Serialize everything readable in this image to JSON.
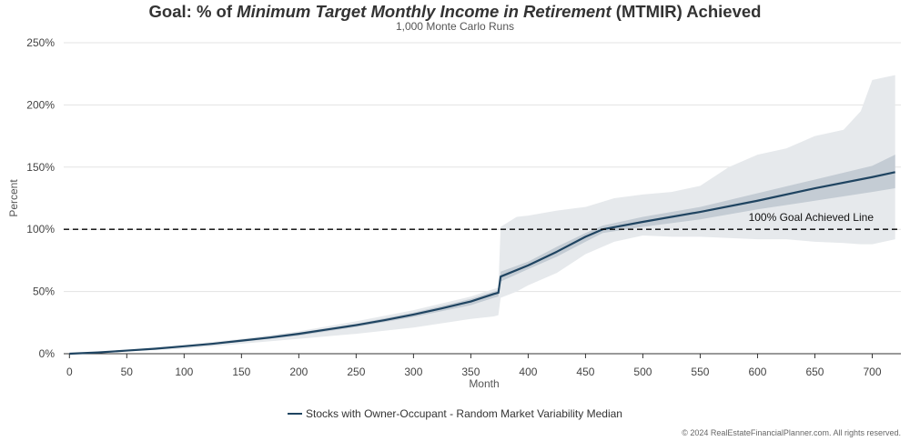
{
  "chart_data": {
    "type": "line",
    "title": {
      "prefix": "Goal: % of ",
      "italic": "Minimum Target Monthly Income in Retirement",
      "suffix": " (MTMIR) Achieved"
    },
    "subtitle": "1,000 Monte Carlo Runs",
    "xlabel": "Month",
    "ylabel": "Percent",
    "xlim": [
      -5,
      725
    ],
    "ylim": [
      0,
      250
    ],
    "x_ticks": [
      0,
      50,
      100,
      150,
      200,
      250,
      300,
      350,
      400,
      450,
      500,
      550,
      600,
      650,
      700
    ],
    "y_ticks": [
      {
        "value": 0,
        "label": "0%"
      },
      {
        "value": 50,
        "label": "50%"
      },
      {
        "value": 100,
        "label": "100%"
      },
      {
        "value": 150,
        "label": "150%"
      },
      {
        "value": 200,
        "label": "200%"
      },
      {
        "value": 250,
        "label": "250%"
      }
    ],
    "grid": "horizontal",
    "legend_position": "bottom",
    "series": [
      {
        "name": "Stocks with Owner-Occupant - Random Market Variability Median",
        "color": "#1f4461",
        "x": [
          0,
          25,
          50,
          75,
          100,
          125,
          150,
          175,
          200,
          225,
          250,
          275,
          300,
          325,
          350,
          370,
          374,
          376,
          400,
          425,
          450,
          465,
          500,
          550,
          600,
          650,
          700,
          720
        ],
        "values": [
          0,
          1,
          2.5,
          4,
          6,
          8,
          10.5,
          13,
          16,
          19.5,
          23,
          27,
          31.5,
          36.5,
          42,
          48,
          49,
          62,
          71,
          82,
          94,
          100,
          106,
          114,
          123,
          133,
          142,
          146
        ]
      }
    ],
    "bands": [
      {
        "color": "#e6e9ec",
        "x": [
          0,
          50,
          100,
          150,
          200,
          250,
          300,
          350,
          370,
          374,
          376,
          390,
          400,
          425,
          450,
          475,
          500,
          525,
          550,
          575,
          600,
          625,
          650,
          675,
          690,
          700,
          710,
          720
        ],
        "upper": [
          0,
          3,
          7,
          12,
          18,
          26,
          35,
          46,
          52,
          53,
          102,
          110,
          111,
          115,
          118,
          125,
          128,
          130,
          135,
          150,
          160,
          165,
          175,
          180,
          195,
          220,
          222,
          224
        ],
        "lower": [
          0,
          2,
          4,
          8,
          12,
          16,
          21,
          28,
          30,
          31,
          45,
          50,
          55,
          65,
          80,
          90,
          95,
          94,
          94,
          93,
          92,
          92,
          90,
          89,
          88,
          88,
          90,
          92
        ]
      },
      {
        "color": "#c4ccd4",
        "x": [
          0,
          50,
          100,
          150,
          200,
          250,
          300,
          350,
          370,
          374,
          376,
          400,
          425,
          450,
          465,
          500,
          550,
          600,
          650,
          700,
          720
        ],
        "upper": [
          0,
          2.8,
          6.5,
          11,
          17,
          24,
          33,
          44,
          50,
          51,
          66,
          74,
          86,
          97,
          103,
          110,
          118,
          129,
          140,
          151,
          160
        ],
        "lower": [
          0,
          2.2,
          5.5,
          9.5,
          14.5,
          21.5,
          29.5,
          39,
          45,
          46,
          58,
          68,
          78,
          90,
          97,
          102,
          108,
          116,
          123,
          130,
          133
        ]
      }
    ],
    "reference_line": {
      "value": 100,
      "label": "100% Goal Achieved Line",
      "style": "dashed",
      "color": "#000000"
    }
  },
  "footer": {
    "copyright": "© 2024 RealEstateFinancialPlanner.com. All rights reserved."
  }
}
